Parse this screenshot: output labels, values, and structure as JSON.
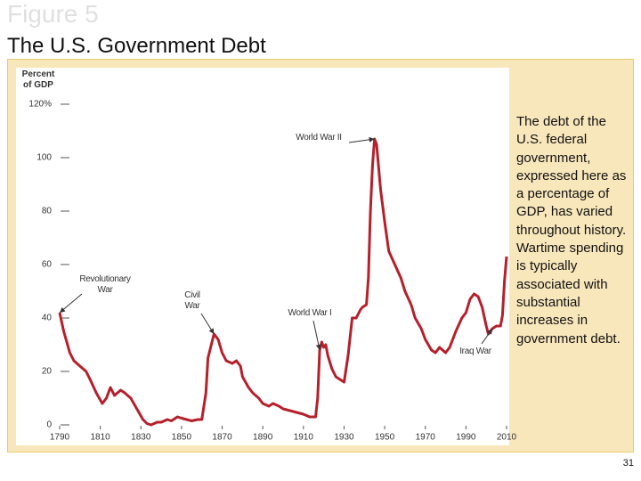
{
  "slide": {
    "heading": "Figure 5",
    "title": "The U.S. Government Debt",
    "caption": "The debt of the U.S. federal government, expressed here as a percentage of GDP, has varied throughout history. Wartime spending is typically associated with substantial increases in government debt.",
    "page_number": "31"
  },
  "chart_data": {
    "type": "line",
    "y_label": "Percent of GDP",
    "x": [
      1790,
      1792,
      1795,
      1797,
      1800,
      1803,
      1805,
      1808,
      1811,
      1813,
      1815,
      1817,
      1820,
      1822,
      1825,
      1828,
      1831,
      1833,
      1835,
      1838,
      1840,
      1843,
      1845,
      1848,
      1850,
      1855,
      1858,
      1860,
      1862,
      1863,
      1865,
      1866,
      1868,
      1870,
      1872,
      1875,
      1877,
      1879,
      1880,
      1883,
      1885,
      1888,
      1890,
      1893,
      1895,
      1898,
      1900,
      1905,
      1910,
      1913,
      1916,
      1917,
      1918,
      1919,
      1920,
      1921,
      1922,
      1924,
      1926,
      1928,
      1930,
      1932,
      1934,
      1936,
      1938,
      1939,
      1941,
      1942,
      1943,
      1944,
      1945,
      1946,
      1948,
      1950,
      1952,
      1955,
      1958,
      1960,
      1963,
      1965,
      1968,
      1970,
      1973,
      1975,
      1977,
      1980,
      1982,
      1985,
      1988,
      1990,
      1992,
      1994,
      1996,
      1998,
      2000,
      2001,
      2003,
      2005,
      2007,
      2008,
      2009,
      2010
    ],
    "series": [
      {
        "color": "#b5202b",
        "values": [
          42,
          35,
          27,
          24,
          22,
          20,
          17,
          12,
          8,
          10,
          14,
          11,
          13,
          12,
          10,
          6,
          2,
          0.5,
          0,
          1,
          1,
          2,
          1.5,
          3,
          2.5,
          1.5,
          2,
          2,
          12,
          25,
          31,
          34,
          32,
          27,
          24,
          23,
          24,
          22,
          18,
          14,
          12,
          10,
          8,
          7,
          8,
          7,
          6,
          5,
          4,
          3,
          3,
          10,
          28,
          31,
          29,
          30,
          26,
          21,
          18,
          17,
          16,
          26,
          40,
          40,
          43,
          44,
          45,
          55,
          80,
          97,
          107,
          105,
          88,
          76,
          65,
          60,
          55,
          50,
          45,
          40,
          36,
          32,
          28,
          27,
          29,
          27,
          29,
          35,
          40,
          42,
          47,
          49,
          48,
          44,
          37,
          34,
          36,
          37,
          37,
          41,
          54,
          63
        ]
      }
    ],
    "xlim": [
      1790,
      2010
    ],
    "ylim": [
      0,
      120
    ],
    "xticks": [
      1790,
      1810,
      1830,
      1850,
      1870,
      1890,
      1910,
      1930,
      1950,
      1970,
      1990,
      2010
    ],
    "yticks": [
      0,
      20,
      40,
      60,
      80,
      100,
      {
        "value": 120,
        "label": "120%"
      }
    ],
    "annotations": [
      {
        "text": "Revolutionary War",
        "x": 1790,
        "y": 42
      },
      {
        "text": "Civil War",
        "x": 1866,
        "y": 34
      },
      {
        "text": "World War I",
        "x": 1918,
        "y": 28
      },
      {
        "text": "World War II",
        "x": 1945,
        "y": 107
      },
      {
        "text": "Iraq War",
        "x": 2003,
        "y": 36
      }
    ]
  }
}
